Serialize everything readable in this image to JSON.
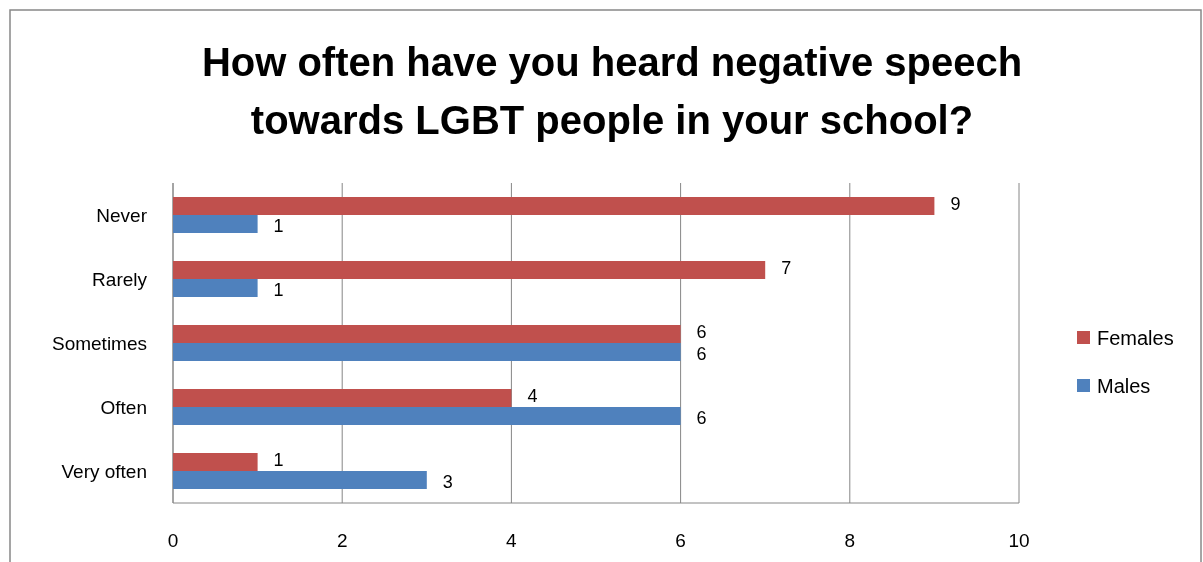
{
  "chart_data": {
    "type": "bar",
    "orientation": "horizontal",
    "title": "How often have you heard negative speech towards LGBT people in your school?",
    "categories": [
      "Never",
      "Rarely",
      "Sometimes",
      "Often",
      "Very often"
    ],
    "series": [
      {
        "name": "Females",
        "color": "#c0504d",
        "values": [
          9,
          7,
          6,
          4,
          1
        ]
      },
      {
        "name": "Males",
        "color": "#4f81bd",
        "values": [
          1,
          1,
          6,
          6,
          3
        ]
      }
    ],
    "xlim": [
      0,
      10
    ],
    "xticks": [
      0,
      2,
      4,
      6,
      8,
      10
    ],
    "grid": "x",
    "legend": "right",
    "data_labels": true
  }
}
